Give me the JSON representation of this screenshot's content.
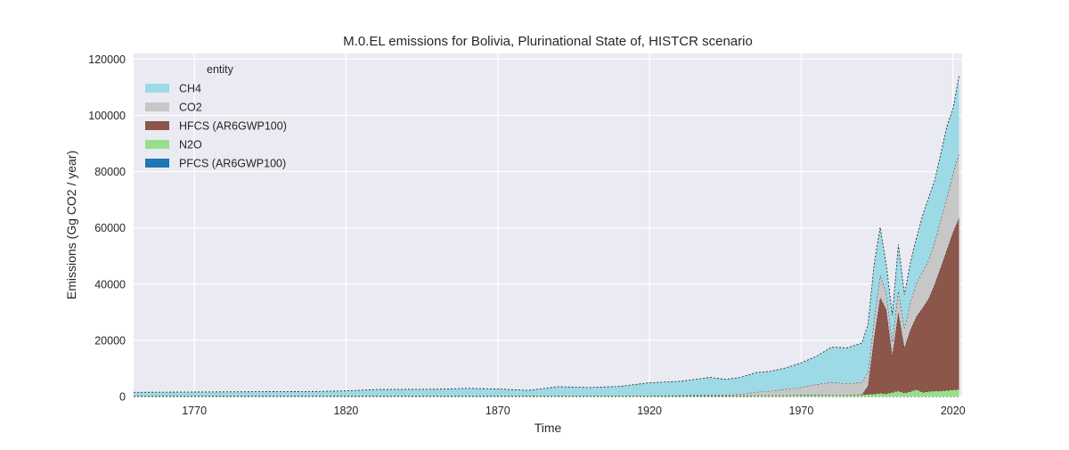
{
  "chart_data": {
    "type": "area",
    "stacked": true,
    "title": "M.0.EL emissions for Bolivia, Plurinational State of, HISTCR scenario",
    "xlabel": "Time",
    "ylabel": "Emissions (Gg CO2 / year)",
    "xlim": [
      1750,
      2023
    ],
    "ylim": [
      0,
      122000
    ],
    "x_ticks": [
      1770,
      1820,
      1870,
      1920,
      1970,
      2020
    ],
    "x_tick_labels": [
      "1770",
      "1820",
      "1870",
      "1920",
      "1970",
      "2020"
    ],
    "y_ticks": [
      0,
      20000,
      40000,
      60000,
      80000,
      100000,
      120000
    ],
    "y_tick_labels": [
      "0",
      "20000",
      "40000",
      "60000",
      "80000",
      "100000",
      "120000"
    ],
    "grid": true,
    "legend": {
      "title": "entity",
      "placement": "top-left"
    },
    "x": [
      1750,
      1770,
      1790,
      1810,
      1820,
      1830,
      1850,
      1860,
      1870,
      1880,
      1890,
      1900,
      1910,
      1920,
      1930,
      1940,
      1945,
      1950,
      1955,
      1960,
      1965,
      1970,
      1975,
      1980,
      1985,
      1990,
      1992,
      1994,
      1996,
      1998,
      2000,
      2002,
      2004,
      2006,
      2008,
      2010,
      2012,
      2014,
      2016,
      2018,
      2020,
      2022
    ],
    "stack_order": [
      "PFCS (AR6GWP100)",
      "N2O",
      "HFCS (AR6GWP100)",
      "CO2",
      "CH4"
    ],
    "series": [
      {
        "name": "PFCS (AR6GWP100)",
        "color": "#1f77b4",
        "values": [
          0,
          0,
          0,
          0,
          0,
          0,
          0,
          0,
          0,
          0,
          0,
          0,
          0,
          0,
          0,
          0,
          0,
          0,
          0,
          0,
          0,
          0,
          0,
          0,
          0,
          0,
          0,
          0,
          0,
          0,
          0,
          0,
          0,
          0,
          0,
          0,
          0,
          0,
          0,
          0,
          0,
          0
        ]
      },
      {
        "name": "N2O",
        "color": "#98df8a",
        "values": [
          200,
          200,
          200,
          200,
          200,
          200,
          200,
          200,
          200,
          200,
          300,
          300,
          300,
          300,
          300,
          300,
          300,
          300,
          400,
          400,
          400,
          500,
          500,
          600,
          600,
          700,
          800,
          900,
          1200,
          1000,
          1500,
          2000,
          1300,
          1800,
          2500,
          1500,
          1800,
          2000,
          2000,
          2200,
          2400,
          2500
        ]
      },
      {
        "name": "HFCS (AR6GWP100)",
        "color": "#8c564b",
        "values": [
          0,
          0,
          0,
          0,
          0,
          0,
          0,
          0,
          0,
          0,
          0,
          0,
          0,
          0,
          0,
          0,
          0,
          0,
          0,
          0,
          0,
          0,
          0,
          0,
          0,
          0,
          3000,
          20000,
          34000,
          30000,
          13000,
          28000,
          16000,
          22000,
          26000,
          30000,
          33000,
          38000,
          44000,
          50000,
          56000,
          61000
        ]
      },
      {
        "name": "CO2",
        "color": "#c7c7c7",
        "values": [
          0,
          0,
          0,
          0,
          0,
          0,
          0,
          0,
          0,
          0,
          0,
          0,
          0,
          0,
          100,
          200,
          300,
          500,
          1200,
          1600,
          2200,
          2800,
          3800,
          4500,
          4000,
          4300,
          5000,
          6500,
          8000,
          6000,
          5000,
          8000,
          7000,
          10000,
          12000,
          13000,
          14000,
          15000,
          17000,
          19000,
          21000,
          23000
        ]
      },
      {
        "name": "CH4",
        "color": "#9edae5",
        "values": [
          1300,
          1400,
          1500,
          1600,
          1800,
          2300,
          2400,
          2700,
          2500,
          2000,
          3200,
          2900,
          3300,
          4600,
          5000,
          6300,
          5500,
          6000,
          6900,
          7000,
          7600,
          8700,
          10000,
          12500,
          12700,
          14000,
          17000,
          19500,
          17000,
          10000,
          9500,
          16000,
          12000,
          14000,
          16000,
          20000,
          22000,
          22000,
          23500,
          25000,
          23000,
          27500
        ]
      }
    ]
  }
}
